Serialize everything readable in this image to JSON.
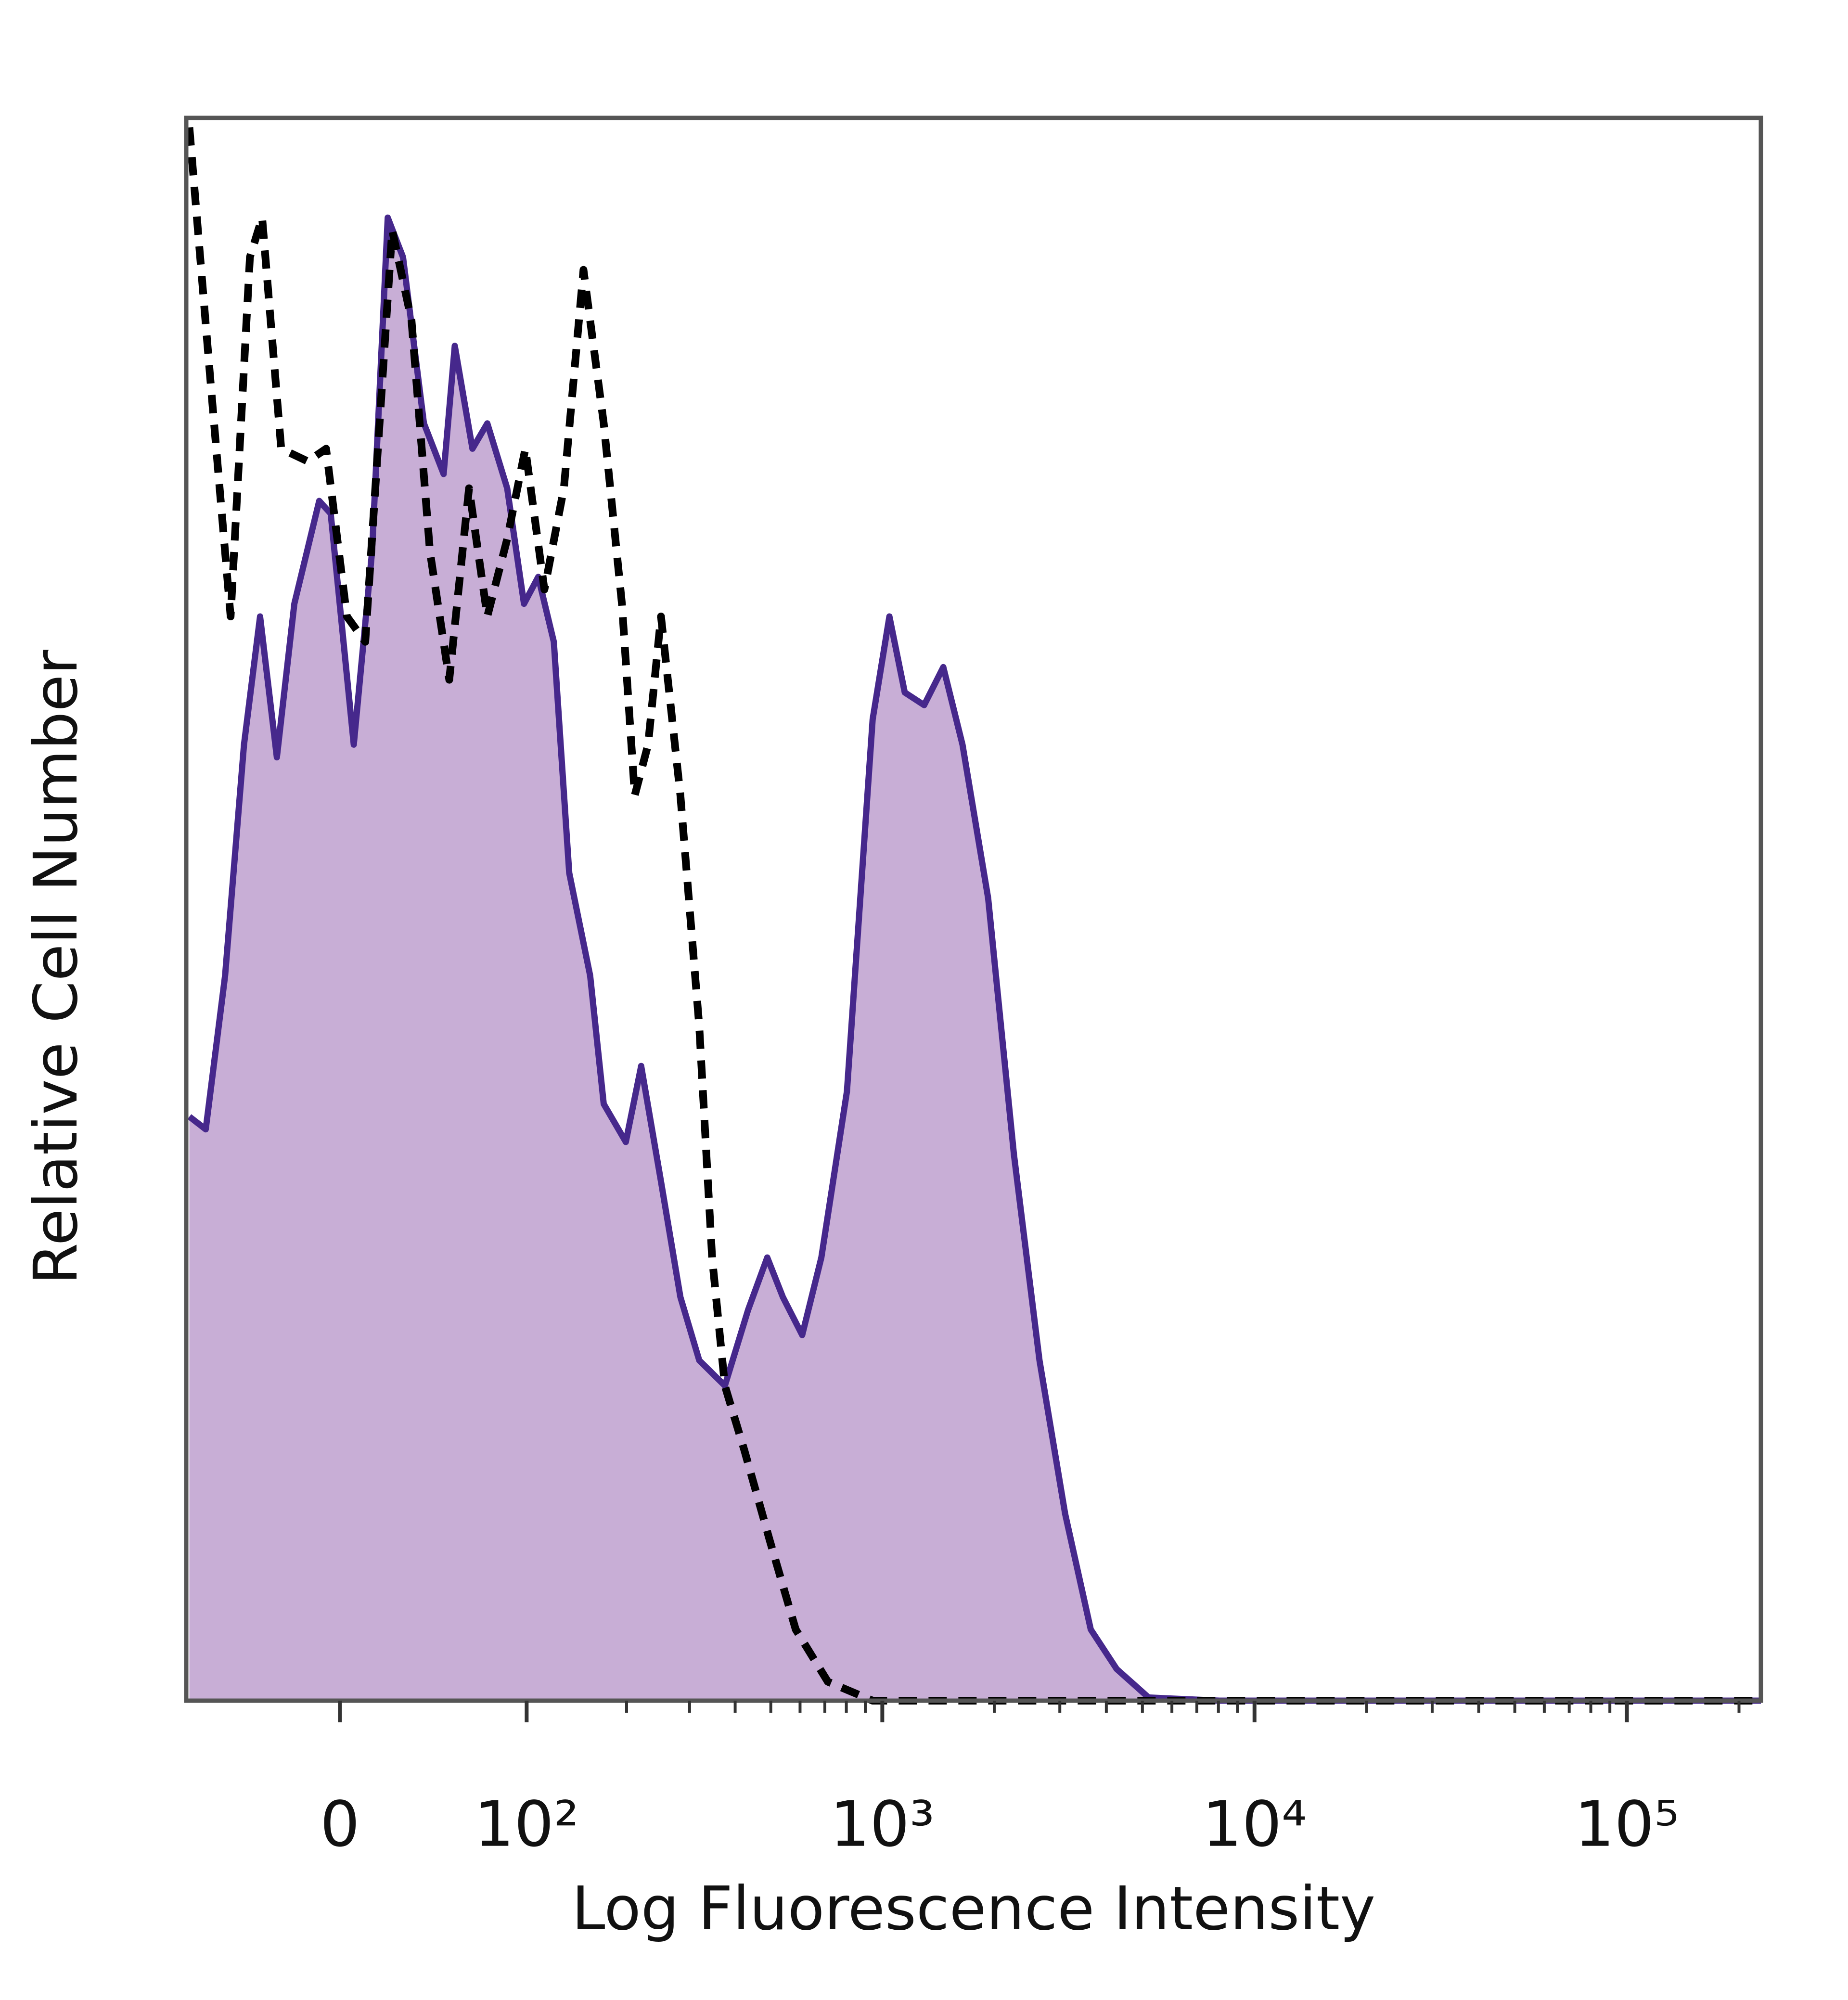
{
  "chart_data": {
    "type": "histogram-line",
    "xlabel": "Log Fluorescence Intensity",
    "ylabel": "Relative Cell Number",
    "xscale": "biexponential",
    "xlim": [
      -77,
      229000
    ],
    "ylim": [
      0,
      100
    ],
    "xticks": [
      {
        "value": 0,
        "label": "0"
      },
      {
        "value": 100,
        "label": "10²"
      },
      {
        "value": 1000,
        "label": "10³"
      },
      {
        "value": 10000,
        "label": "10⁴"
      },
      {
        "value": 100000,
        "label": "10⁵"
      }
    ],
    "xminorticks": [
      200,
      300,
      400,
      500,
      600,
      700,
      800,
      900,
      2000,
      3000,
      4000,
      5000,
      6000,
      7000,
      8000,
      9000,
      20000,
      30000,
      40000,
      50000,
      60000,
      70000,
      80000,
      90000,
      200000
    ],
    "series": [
      {
        "color": "#46288c",
        "fill": "#c8aed6",
        "dashed": false,
        "x": [
          -75,
          -65,
          -54,
          -44,
          -36,
          -28,
          -20,
          -9,
          -4,
          6,
          14,
          21,
          28,
          38,
          48,
          54,
          64,
          73,
          86,
          98,
          109,
          122,
          136,
          157,
          172,
          199,
          220,
          250,
          283,
          319,
          375,
          434,
          489,
          539,
          608,
          685,
          803,
          942,
          1045,
          1149,
          1296,
          1459,
          1643,
          1926,
          2259,
          2646,
          3101,
          3633,
          4263,
          5194,
          8043,
          229000
        ],
        "values": [
          36.9,
          36.1,
          45.8,
          60.4,
          68.5,
          59.6,
          69.3,
          75.8,
          75.0,
          60.4,
          72.6,
          93.7,
          91.2,
          80.7,
          77.5,
          85.6,
          79.1,
          80.7,
          76.6,
          69.3,
          71.0,
          66.9,
          52.3,
          45.8,
          37.7,
          35.3,
          40.1,
          32.8,
          25.5,
          21.5,
          19.9,
          24.7,
          28.0,
          25.5,
          23.1,
          28.0,
          38.5,
          62.0,
          68.5,
          63.7,
          62.9,
          65.3,
          60.4,
          50.7,
          34.5,
          21.5,
          11.8,
          4.5,
          2.0,
          0.2,
          0,
          0
        ]
      },
      {
        "color": "#000000",
        "dashed": true,
        "x": [
          -75,
          -62,
          -51,
          -41,
          -35,
          -26,
          -14,
          -6,
          3,
          11,
          23,
          32,
          41,
          51,
          62,
          73,
          86,
          99,
          114,
          131,
          150,
          172,
          194,
          211,
          230,
          250,
          283,
          319,
          346,
          375,
          424,
          497,
          584,
          713,
          942,
          229000
        ],
        "values": [
          99.4,
          83.1,
          68.5,
          91.2,
          93.7,
          79.1,
          78.3,
          79.1,
          68.5,
          66.9,
          92.9,
          87.2,
          72.6,
          64.5,
          76.6,
          68.5,
          73.4,
          79.1,
          70.2,
          76.6,
          90.4,
          80.7,
          69.3,
          57.2,
          60.4,
          68.5,
          57.2,
          42.6,
          28.0,
          19.9,
          15.8,
          10.1,
          4.5,
          1.2,
          0,
          0
        ]
      }
    ]
  }
}
